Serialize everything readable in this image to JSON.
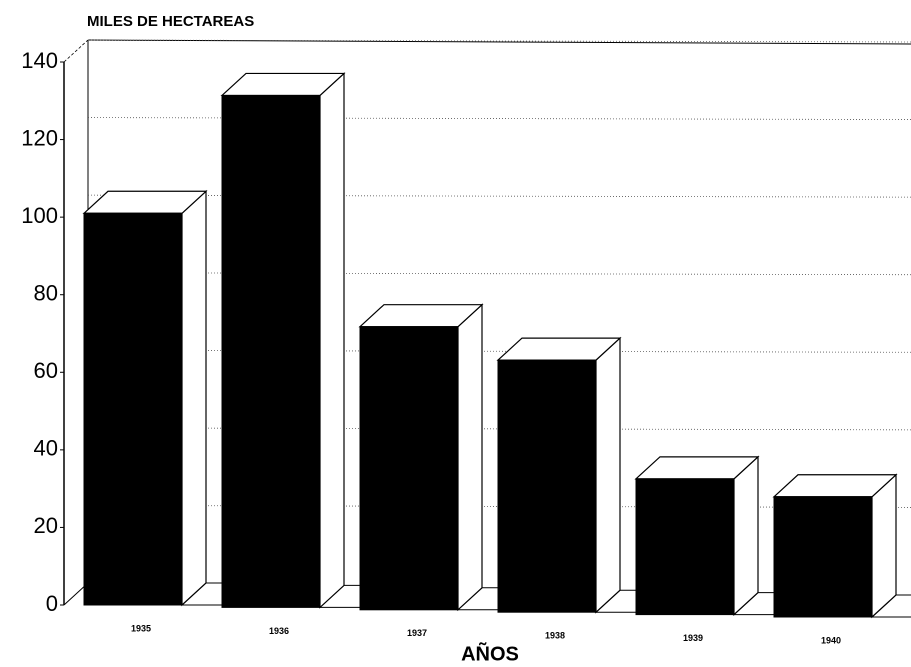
{
  "chart_data": {
    "type": "bar3d",
    "y_axis_label": "MILES DE HECTAREAS",
    "x_axis_label": "AÑOS",
    "categories": [
      "1935",
      "1936",
      "1937",
      "1938",
      "1939",
      "1940"
    ],
    "values": [
      101,
      132,
      73,
      65,
      35,
      31
    ],
    "color": "#000000",
    "ylim": [
      0,
      140
    ],
    "yticks": [
      0,
      20,
      40,
      60,
      80,
      100,
      120,
      140
    ],
    "grid": true
  }
}
